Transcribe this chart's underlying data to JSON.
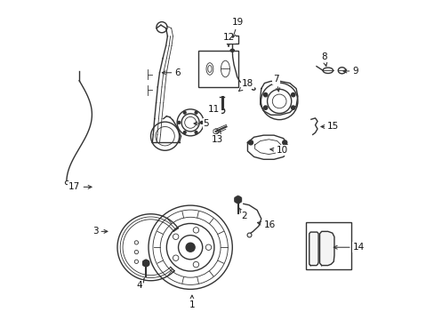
{
  "bg_color": "#ffffff",
  "line_color": "#333333",
  "label_color": "#111111",
  "fig_width": 4.89,
  "fig_height": 3.6,
  "label_offsets": {
    "1": [
      0.42,
      0.085,
      0.42,
      0.045
    ],
    "2": [
      0.565,
      0.355,
      0.585,
      0.325
    ],
    "3": [
      0.165,
      0.275,
      0.115,
      0.275
    ],
    "4": [
      0.275,
      0.135,
      0.255,
      0.105
    ],
    "5": [
      0.415,
      0.615,
      0.465,
      0.615
    ],
    "6": [
      0.315,
      0.775,
      0.375,
      0.775
    ],
    "7": [
      0.695,
      0.705,
      0.685,
      0.755
    ],
    "8": [
      0.845,
      0.785,
      0.835,
      0.825
    ],
    "9": [
      0.885,
      0.78,
      0.935,
      0.78
    ],
    "10": [
      0.655,
      0.535,
      0.705,
      0.53
    ],
    "11": [
      0.515,
      0.66,
      0.49,
      0.66
    ],
    "12": [
      0.535,
      0.855,
      0.535,
      0.885
    ],
    "13": [
      0.51,
      0.595,
      0.5,
      0.565
    ],
    "14": [
      0.855,
      0.225,
      0.945,
      0.225
    ],
    "15": [
      0.815,
      0.605,
      0.865,
      0.605
    ],
    "16": [
      0.615,
      0.305,
      0.665,
      0.295
    ],
    "17": [
      0.115,
      0.415,
      0.05,
      0.415
    ],
    "18": [
      0.565,
      0.715,
      0.595,
      0.74
    ],
    "19": [
      0.545,
      0.875,
      0.565,
      0.935
    ]
  }
}
